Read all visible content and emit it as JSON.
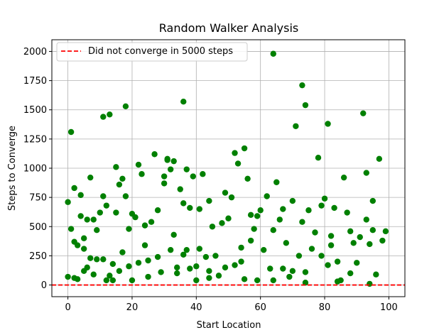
{
  "chart_data": {
    "type": "scatter",
    "title": "Random Walker Analysis",
    "xlabel": "Start Location",
    "ylabel": "Steps to Converge",
    "xlim": [
      -5,
      105
    ],
    "ylim": [
      -100,
      2100
    ],
    "xticks": [
      0,
      20,
      40,
      60,
      80,
      100
    ],
    "yticks": [
      0,
      250,
      500,
      750,
      1000,
      1250,
      1500,
      1750,
      2000
    ],
    "grid": true,
    "legend": {
      "placement": "top-left",
      "entries": [
        "Did not converge in 5000 steps"
      ]
    },
    "series": [
      {
        "marker": "circle",
        "color": "#008000",
        "x": [
          0,
          0,
          1,
          1,
          2,
          2,
          2,
          3,
          3,
          4,
          4,
          5,
          5,
          6,
          6,
          7,
          7,
          8,
          8,
          9,
          10,
          11,
          11,
          11,
          12,
          12,
          13,
          13,
          14,
          15,
          15,
          16,
          16,
          17,
          17,
          18,
          18,
          19,
          19,
          20,
          20,
          21,
          22,
          22,
          23,
          24,
          25,
          25,
          26,
          27,
          28,
          28,
          29,
          30,
          30,
          31,
          31,
          32,
          32,
          33,
          33,
          34,
          35,
          36,
          36,
          36,
          37,
          37,
          38,
          38,
          39,
          40,
          40,
          41,
          41,
          42,
          43,
          44,
          44,
          45,
          46,
          47,
          48,
          49,
          49,
          50,
          51,
          52,
          52,
          53,
          54,
          55,
          55,
          56,
          57,
          57,
          58,
          59,
          59,
          60,
          61,
          62,
          63,
          64,
          64,
          65,
          66,
          67,
          67,
          68,
          69,
          70,
          70,
          71,
          72,
          73,
          73,
          74,
          74,
          75,
          76,
          77,
          78,
          79,
          79,
          80,
          81,
          81,
          82,
          82,
          83,
          84,
          85,
          86,
          87,
          88,
          88,
          89,
          90,
          91,
          92,
          93,
          93,
          94,
          95,
          95,
          96,
          97,
          98,
          99,
          5,
          9,
          14,
          24,
          34,
          44,
          54,
          64,
          74,
          84,
          94
        ],
        "y": [
          710,
          70,
          1310,
          480,
          830,
          370,
          60,
          340,
          50,
          590,
          770,
          400,
          310,
          150,
          560,
          920,
          230,
          560,
          90,
          470,
          620,
          1440,
          760,
          220,
          680,
          40,
          1460,
          80,
          40,
          1010,
          620,
          860,
          120,
          910,
          280,
          1530,
          760,
          480,
          160,
          610,
          40,
          580,
          1030,
          190,
          950,
          510,
          210,
          70,
          540,
          1120,
          640,
          240,
          110,
          930,
          870,
          1070,
          1080,
          300,
          990,
          430,
          1060,
          150,
          820,
          1570,
          700,
          260,
          990,
          300,
          660,
          140,
          930,
          160,
          40,
          650,
          310,
          950,
          240,
          720,
          120,
          500,
          250,
          80,
          530,
          790,
          150,
          570,
          750,
          1130,
          170,
          1040,
          320,
          1170,
          50,
          910,
          600,
          380,
          480,
          590,
          40,
          640,
          300,
          760,
          140,
          1980,
          470,
          880,
          560,
          650,
          140,
          360,
          70,
          720,
          120,
          1360,
          250,
          1710,
          540,
          1540,
          110,
          640,
          310,
          450,
          1090,
          250,
          680,
          740,
          170,
          1380,
          420,
          340,
          660,
          200,
          40,
          920,
          620,
          460,
          100,
          360,
          190,
          410,
          1470,
          560,
          960,
          350,
          720,
          470,
          90,
          1080,
          380,
          460,
          120,
          220,
          180,
          340,
          100,
          60,
          200,
          40,
          20,
          30,
          10
        ]
      },
      {
        "name": "Did not converge in 5000 steps",
        "type": "hline",
        "y": 0,
        "color": "#ff0000",
        "style": "dashed"
      }
    ]
  }
}
